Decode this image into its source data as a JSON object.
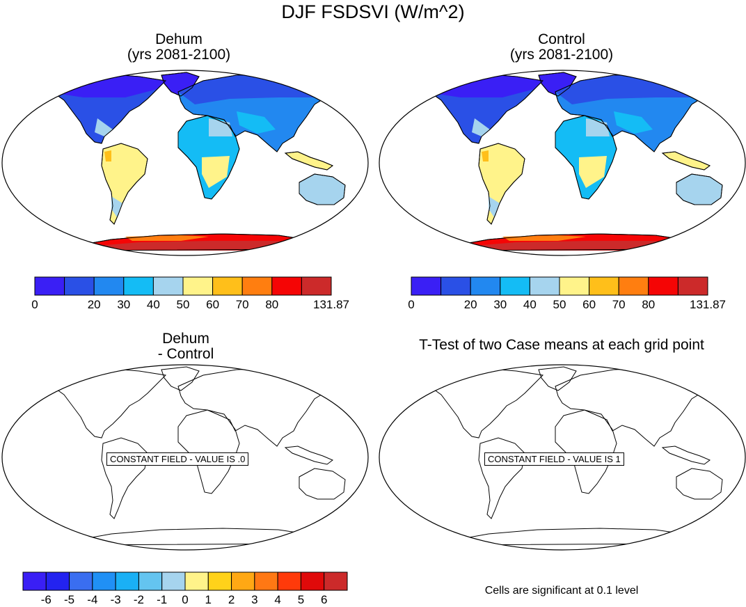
{
  "title": "DJF FSDSVI (W/m^2)",
  "panels": {
    "top_left": {
      "title_line1": "Dehum",
      "title_line2": "(yrs 2081-2100)"
    },
    "top_right": {
      "title_line1": "Control",
      "title_line2": "(yrs 2081-2100)"
    },
    "bottom_left": {
      "title_line1": "Dehum",
      "title_line2": "- Control",
      "constant_label": "CONSTANT FIELD - VALUE IS .0"
    },
    "bottom_right": {
      "title_line1": "T-Test of two Case means at each grid point",
      "constant_label": "CONSTANT FIELD - VALUE IS 1"
    }
  },
  "colorbar_main": {
    "colors": [
      "#3a1ff5",
      "#2a50e6",
      "#2288f0",
      "#14bcf5",
      "#a6d4ee",
      "#fff38a",
      "#ffbf1a",
      "#ff7e10",
      "#f50505",
      "#cc2a2a"
    ],
    "labels": [
      "0",
      "",
      "20",
      "30",
      "40",
      "50",
      "60",
      "70",
      "80",
      "",
      "131.87"
    ]
  },
  "colorbar_diff": {
    "colors": [
      "#3a1ff5",
      "#2323f0",
      "#3a6ef0",
      "#2090f5",
      "#1ab0f5",
      "#64c4f0",
      "#a6d4ee",
      "#fff38a",
      "#ffd21a",
      "#ffa814",
      "#ff7814",
      "#ff3a0a",
      "#e00a0a",
      "#cc2a2a"
    ],
    "labels": [
      "-6",
      "-5",
      "-4",
      "-3",
      "-2",
      "-1",
      "0",
      "1",
      "2",
      "3",
      "4",
      "5",
      "6"
    ]
  },
  "footer_note": "Cells are significant at 0.1 level"
}
